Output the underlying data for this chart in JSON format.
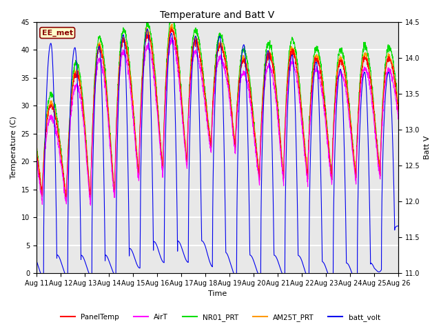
{
  "title": "Temperature and Batt V",
  "xlabel": "Time",
  "ylabel_left": "Temperature (C)",
  "ylabel_right": "Batt V",
  "annotation": "EE_met",
  "ylim_left": [
    0,
    45
  ],
  "ylim_right": [
    11.0,
    14.5
  ],
  "yticks_left": [
    0,
    5,
    10,
    15,
    20,
    25,
    30,
    35,
    40,
    45
  ],
  "yticks_right": [
    11.0,
    11.5,
    12.0,
    12.5,
    13.0,
    13.5,
    14.0,
    14.5
  ],
  "x_start": 11,
  "x_end": 26,
  "x_ticks": [
    11,
    12,
    13,
    14,
    15,
    16,
    17,
    18,
    19,
    20,
    21,
    22,
    23,
    24,
    25,
    26
  ],
  "x_tick_labels": [
    "Aug 11",
    "Aug 12",
    "Aug 13",
    "Aug 14",
    "Aug 15",
    "Aug 16",
    "Aug 17",
    "Aug 18",
    "Aug 19",
    "Aug 20",
    "Aug 21",
    "Aug 22",
    "Aug 23",
    "Aug 24",
    "Aug 25",
    "Aug 26"
  ],
  "colors": {
    "PanelTemp": "#ff0000",
    "AirT": "#ff00ff",
    "NR01_PRT": "#00dd00",
    "AM25T_PRT": "#ff9900",
    "batt_volt": "#0000ee"
  },
  "background_color": "#e8e8e8",
  "grid_band_color": "#d0d0d0",
  "title_fontsize": 10,
  "axis_fontsize": 8,
  "tick_fontsize": 7,
  "figsize": [
    6.4,
    4.8
  ],
  "dpi": 100
}
